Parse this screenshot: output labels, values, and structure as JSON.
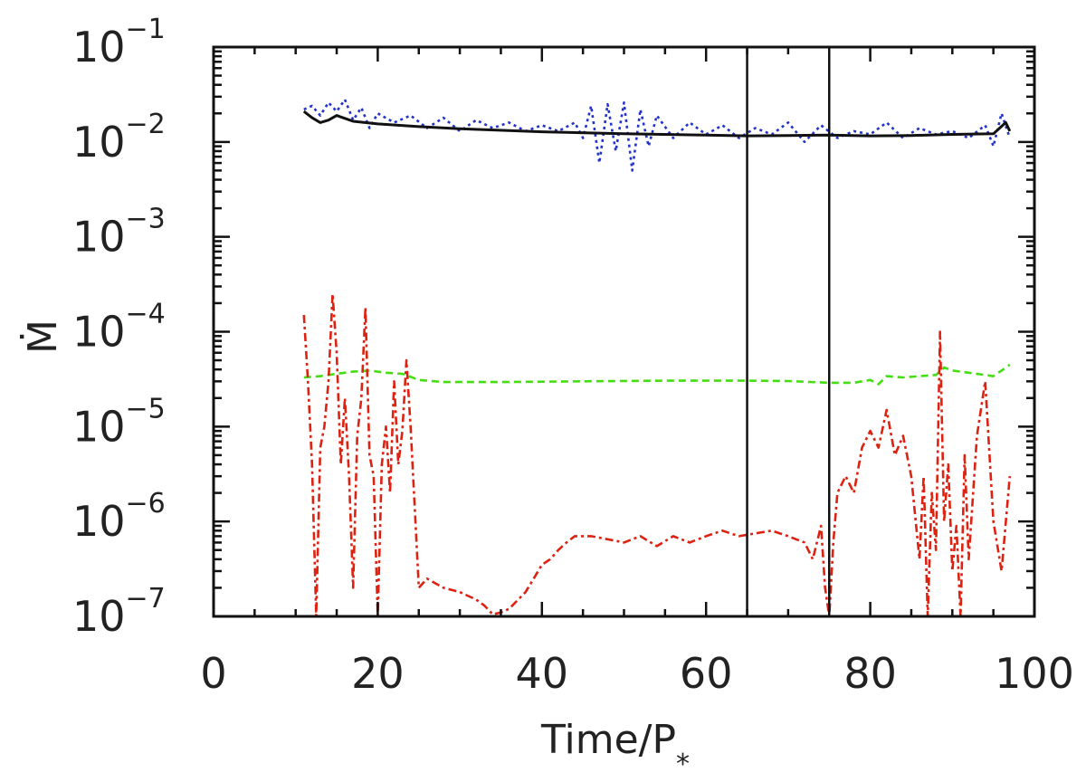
{
  "chart_data": {
    "type": "line",
    "title": "",
    "xlabel": "Time/P",
    "xlabel_subscript": "*",
    "ylabel": "Ṁ",
    "xlim": [
      0,
      100
    ],
    "ylim": [
      1e-07,
      0.1
    ],
    "yscale": "log",
    "grid": false,
    "legend": "none",
    "x_ticks": [
      {
        "value": 0,
        "label": "0"
      },
      {
        "value": 20,
        "label": "20"
      },
      {
        "value": 40,
        "label": "40"
      },
      {
        "value": 60,
        "label": "60"
      },
      {
        "value": 80,
        "label": "80"
      },
      {
        "value": 100,
        "label": "100"
      }
    ],
    "y_ticks": [
      {
        "value": 0.1,
        "base": "10",
        "exp": "−1"
      },
      {
        "value": 0.01,
        "base": "10",
        "exp": "−2"
      },
      {
        "value": 0.001,
        "base": "10",
        "exp": "−3"
      },
      {
        "value": 0.0001,
        "base": "10",
        "exp": "−4"
      },
      {
        "value": 1e-05,
        "base": "10",
        "exp": "−5"
      },
      {
        "value": 1e-06,
        "base": "10",
        "exp": "−6"
      },
      {
        "value": 1e-07,
        "base": "10",
        "exp": "−7"
      }
    ],
    "vertical_lines": [
      65,
      75
    ],
    "series": [
      {
        "color": "#2233cc",
        "style": "dotted",
        "x": [
          11,
          12,
          13,
          14,
          15,
          16,
          17,
          18,
          19,
          20,
          22,
          24,
          26,
          28,
          30,
          32,
          34,
          36,
          38,
          40,
          42,
          44,
          45,
          46,
          47,
          48,
          49,
          50,
          51,
          52,
          53,
          54,
          56,
          58,
          60,
          62,
          64,
          66,
          68,
          70,
          72,
          74,
          76,
          78,
          80,
          82,
          84,
          86,
          88,
          90,
          92,
          94,
          95,
          96,
          97
        ],
        "y": [
          0.022,
          0.024,
          0.019,
          0.026,
          0.021,
          0.028,
          0.017,
          0.023,
          0.014,
          0.02,
          0.016,
          0.019,
          0.014,
          0.018,
          0.013,
          0.017,
          0.014,
          0.016,
          0.013,
          0.015,
          0.013,
          0.016,
          0.011,
          0.024,
          0.006,
          0.025,
          0.008,
          0.026,
          0.005,
          0.022,
          0.009,
          0.019,
          0.011,
          0.016,
          0.012,
          0.015,
          0.011,
          0.014,
          0.012,
          0.016,
          0.01,
          0.015,
          0.011,
          0.013,
          0.012,
          0.016,
          0.011,
          0.014,
          0.012,
          0.013,
          0.011,
          0.015,
          0.009,
          0.02,
          0.011
        ]
      },
      {
        "color": "#111111",
        "style": "solid",
        "x": [
          11,
          12,
          13,
          14,
          15,
          17,
          20,
          25,
          30,
          40,
          50,
          60,
          65,
          70,
          75,
          80,
          85,
          90,
          95,
          96.5,
          97
        ],
        "y": [
          0.021,
          0.018,
          0.016,
          0.017,
          0.019,
          0.0165,
          0.0155,
          0.0145,
          0.0138,
          0.0128,
          0.0122,
          0.0118,
          0.0116,
          0.0117,
          0.0118,
          0.0116,
          0.0117,
          0.012,
          0.0122,
          0.016,
          0.013
        ]
      },
      {
        "color": "#44dd11",
        "style": "dashed",
        "x": [
          11,
          13,
          15,
          17,
          19,
          21,
          23,
          25,
          28,
          35,
          45,
          55,
          65,
          70,
          75,
          78,
          80,
          81,
          82,
          84,
          86,
          88,
          89,
          90,
          92,
          94,
          95,
          96,
          97
        ],
        "y": [
          3.3e-05,
          3.4e-05,
          3.6e-05,
          3.8e-05,
          3.9e-05,
          3.7e-05,
          3.6e-05,
          3.1e-05,
          2.95e-05,
          2.95e-05,
          3e-05,
          3.05e-05,
          3.05e-05,
          3.02e-05,
          2.9e-05,
          2.9e-05,
          3.1e-05,
          2.8e-05,
          3.4e-05,
          3.3e-05,
          3.4e-05,
          3.5e-05,
          4.2e-05,
          3.9e-05,
          3.7e-05,
          3.5e-05,
          3.4e-05,
          3.9e-05,
          4.5e-05
        ]
      },
      {
        "color": "#dd2211",
        "style": "dash-dot",
        "x": [
          11,
          11.5,
          12,
          12.5,
          13,
          13.5,
          14,
          14.5,
          15,
          15.5,
          16,
          16.5,
          17,
          17.5,
          18,
          18.5,
          19,
          19.5,
          20,
          20.5,
          21,
          21.5,
          22,
          22.5,
          23,
          23.5,
          24,
          25,
          26,
          28,
          30,
          32,
          33,
          34,
          35,
          36,
          38,
          39,
          40,
          41,
          42,
          43,
          44,
          46,
          48,
          50,
          52,
          54,
          56,
          58,
          60,
          62,
          64,
          66,
          68,
          70,
          72,
          73,
          74,
          74.5,
          75,
          75.5,
          76,
          77,
          78,
          79,
          80,
          81,
          82,
          83,
          84,
          85,
          86,
          86.5,
          87,
          87.5,
          88,
          88.5,
          89,
          89.5,
          90,
          90.5,
          91,
          91.5,
          92,
          93,
          94,
          95,
          96,
          97
        ],
        "y": [
          0.00015,
          3e-05,
          4e-06,
          1e-07,
          6e-06,
          1e-05,
          3e-05,
          0.00025,
          6e-05,
          4e-06,
          2e-05,
          3e-06,
          2e-07,
          8e-06,
          2e-05,
          0.00018,
          5e-06,
          3e-06,
          1e-07,
          4e-06,
          1e-05,
          2e-06,
          3e-05,
          4e-06,
          9e-06,
          5e-05,
          1e-05,
          2e-07,
          2.5e-07,
          2e-07,
          1.8e-07,
          1.5e-07,
          1.3e-07,
          1.05e-07,
          1.1e-07,
          1.2e-07,
          1.8e-07,
          2.5e-07,
          3.5e-07,
          4e-07,
          5e-07,
          6e-07,
          7e-07,
          7e-07,
          6.5e-07,
          6e-07,
          7e-07,
          5.5e-07,
          7e-07,
          6e-07,
          7e-07,
          8e-07,
          7e-07,
          7.5e-07,
          8e-07,
          7e-07,
          6e-07,
          4e-07,
          9e-07,
          2e-07,
          1e-07,
          6e-07,
          2e-06,
          3e-06,
          2e-06,
          6e-06,
          9e-06,
          6e-06,
          1.5e-05,
          5e-06,
          8e-06,
          3e-06,
          4e-07,
          3e-06,
          1e-07,
          2e-06,
          5e-07,
          0.0001,
          1e-06,
          4e-06,
          3e-07,
          9e-07,
          1e-07,
          5e-06,
          4e-07,
          8e-06,
          3e-05,
          1e-06,
          3e-07,
          3e-06
        ]
      }
    ]
  }
}
